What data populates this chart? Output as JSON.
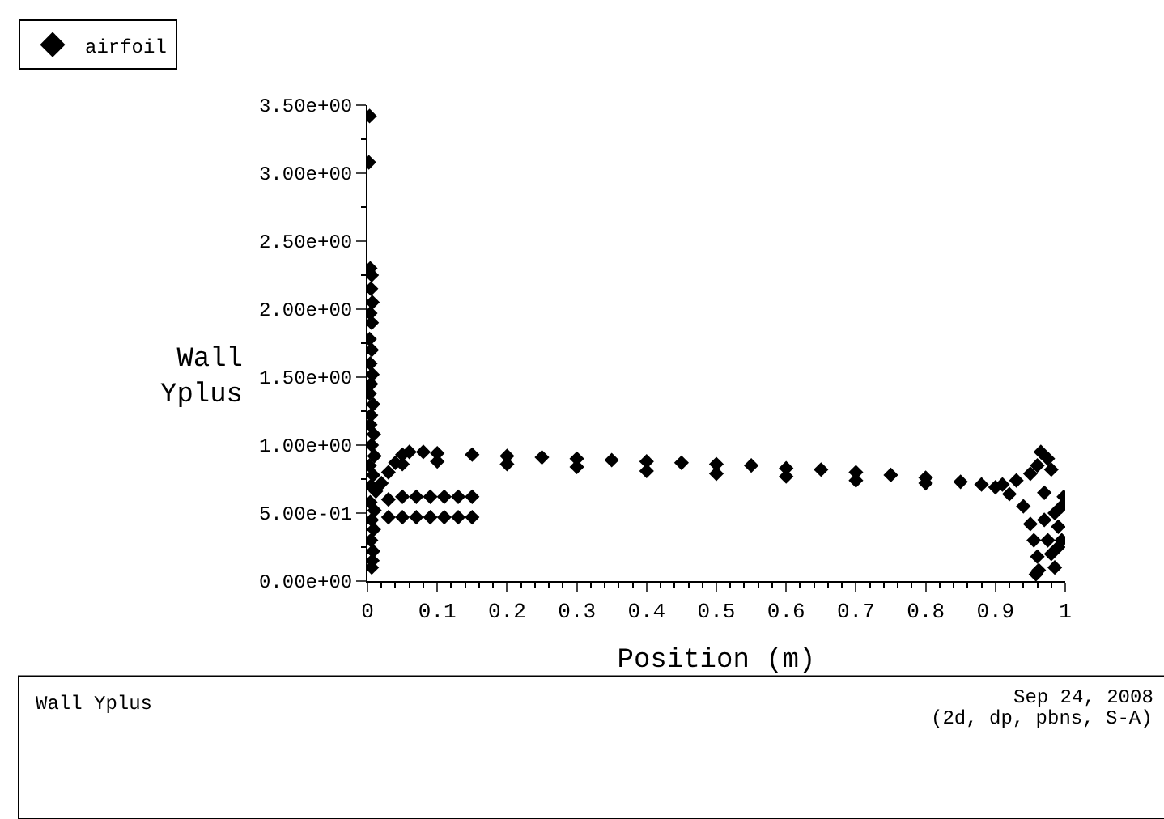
{
  "chart_data": {
    "type": "scatter",
    "ylabel": "Wall\nYplus",
    "xlabel": "Position (m)",
    "legend": "top left",
    "marker": "diamond",
    "grid": false,
    "xlim": [
      0,
      1
    ],
    "xticks": [
      0,
      0.1,
      0.2,
      0.3,
      0.4,
      0.5,
      0.6,
      0.7,
      0.8,
      0.9,
      1
    ],
    "ylim": [
      0,
      3.5
    ],
    "yticks": [
      {
        "value": 0,
        "label": "0.00e+00"
      },
      {
        "value": 0.5,
        "label": "5.00e-01"
      },
      {
        "value": 1,
        "label": "1.00e+00"
      },
      {
        "value": 1.5,
        "label": "1.50e+00"
      },
      {
        "value": 2,
        "label": "2.00e+00"
      },
      {
        "value": 2.5,
        "label": "2.50e+00"
      },
      {
        "value": 3,
        "label": "3.00e+00"
      },
      {
        "value": 3.5,
        "label": "3.50e+00"
      }
    ],
    "annotations": [
      "Wall Yplus",
      "Sep 24, 2008",
      "(2d, dp, pbns, S-A)"
    ],
    "series": [
      {
        "name": "airfoil",
        "color": "#000000",
        "x": [
          0.003,
          0.002,
          0.004,
          0.006,
          0.005,
          0.007,
          0.004,
          0.006,
          0.003,
          0.006,
          0.004,
          0.007,
          0.005,
          0.003,
          0.008,
          0.005,
          0.004,
          0.009,
          0.006,
          0.01,
          0.003,
          0.008,
          0.005,
          0.012,
          0.004,
          0.01,
          0.006,
          0.009,
          0.005,
          0.008,
          0.007,
          0.006,
          0.02,
          0.03,
          0.04,
          0.05,
          0.06,
          0.08,
          0.1,
          0.15,
          0.2,
          0.25,
          0.3,
          0.35,
          0.4,
          0.45,
          0.5,
          0.55,
          0.6,
          0.65,
          0.7,
          0.75,
          0.8,
          0.85,
          0.88,
          0.05,
          0.1,
          0.2,
          0.3,
          0.4,
          0.5,
          0.6,
          0.7,
          0.8,
          0.9,
          0.91,
          0.93,
          0.95,
          0.96,
          0.965,
          0.975,
          0.98,
          0.97,
          0.92,
          0.94,
          0.95,
          0.955,
          0.96,
          0.958,
          0.962,
          0.97,
          0.975,
          0.98,
          0.985,
          0.99,
          0.99,
          0.995,
          0.998,
          0.995,
          0.985,
          0.03,
          0.05,
          0.07,
          0.09,
          0.11,
          0.13,
          0.15,
          0.03,
          0.05,
          0.07,
          0.09,
          0.11,
          0.13,
          0.15
        ],
        "values": [
          3.42,
          3.08,
          2.3,
          2.25,
          2.15,
          2.05,
          1.97,
          1.9,
          1.78,
          1.7,
          1.6,
          1.52,
          1.45,
          1.38,
          1.3,
          1.22,
          1.15,
          1.08,
          1.0,
          0.92,
          0.85,
          0.78,
          0.7,
          0.66,
          0.58,
          0.52,
          0.45,
          0.38,
          0.3,
          0.22,
          0.15,
          0.1,
          0.72,
          0.8,
          0.87,
          0.93,
          0.95,
          0.95,
          0.94,
          0.93,
          0.92,
          0.91,
          0.9,
          0.89,
          0.88,
          0.87,
          0.86,
          0.85,
          0.83,
          0.82,
          0.8,
          0.78,
          0.76,
          0.73,
          0.71,
          0.86,
          0.88,
          0.86,
          0.84,
          0.81,
          0.79,
          0.77,
          0.74,
          0.72,
          0.69,
          0.71,
          0.74,
          0.79,
          0.85,
          0.95,
          0.9,
          0.82,
          0.65,
          0.64,
          0.55,
          0.42,
          0.3,
          0.18,
          0.05,
          0.08,
          0.45,
          0.3,
          0.2,
          0.1,
          0.25,
          0.4,
          0.55,
          0.62,
          0.3,
          0.5,
          0.6,
          0.62,
          0.62,
          0.62,
          0.62,
          0.62,
          0.62,
          0.47,
          0.47,
          0.47,
          0.47,
          0.47,
          0.47,
          0.47
        ]
      }
    ]
  }
}
